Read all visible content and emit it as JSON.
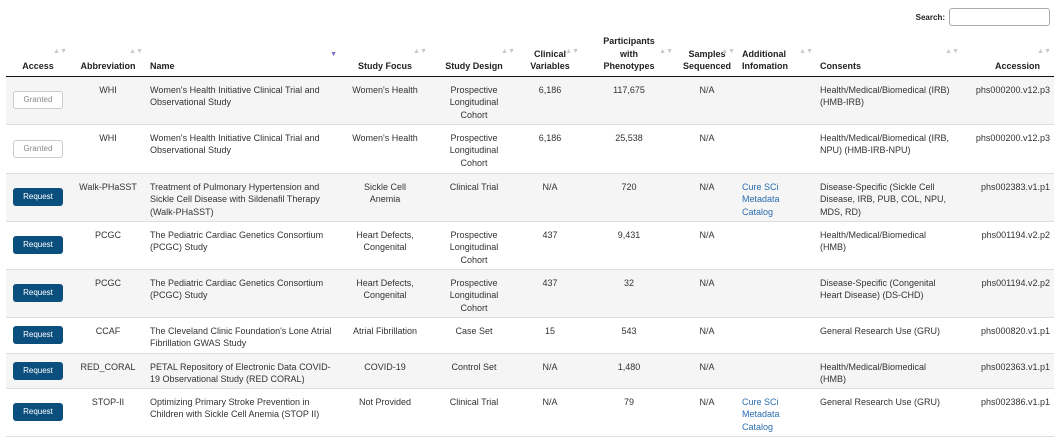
{
  "search": {
    "label": "Search:",
    "value": "",
    "placeholder": ""
  },
  "headers": {
    "access": "Access",
    "abbreviation": "Abbreviation",
    "name": "Name",
    "study_focus": "Study Focus",
    "study_design": "Study Design",
    "clinical_variables_l1": "Clinical",
    "clinical_variables_l2": "Variables",
    "participants_l1": "Participants",
    "participants_l2": "with",
    "participants_l3": "Phenotypes",
    "samples_l1": "Samples",
    "samples_l2": "Sequenced",
    "additional_l1": "Additional",
    "additional_l2": "Infomation",
    "consents": "Consents",
    "accession": "Accession"
  },
  "sort_icons": {
    "inactive": "▲▼",
    "active": "▼"
  },
  "rows": [
    {
      "access": "Granted",
      "access_type": "granted",
      "abbreviation": "WHI",
      "name_lines": [
        "Women's Health Initiative Clinical Trial and",
        "Observational Study"
      ],
      "focus_lines": [
        "Women's Health"
      ],
      "design_lines": [
        "Prospective",
        "Longitudinal",
        "Cohort"
      ],
      "clinical_variables": "6,186",
      "participants": "117,675",
      "samples": "N/A",
      "info_lines": [],
      "consents_lines": [
        "Health/Medical/Biomedical (IRB)",
        "(HMB-IRB)"
      ],
      "accession": "phs000200.v12.p3"
    },
    {
      "access": "Granted",
      "access_type": "granted",
      "abbreviation": "WHI",
      "name_lines": [
        "Women's Health Initiative Clinical Trial and",
        "Observational Study"
      ],
      "focus_lines": [
        "Women's Health"
      ],
      "design_lines": [
        "Prospective",
        "Longitudinal",
        "Cohort"
      ],
      "clinical_variables": "6,186",
      "participants": "25,538",
      "samples": "N/A",
      "info_lines": [],
      "consents_lines": [
        "Health/Medical/Biomedical (IRB,",
        "NPU) (HMB-IRB-NPU)"
      ],
      "accession": "phs000200.v12.p3"
    },
    {
      "access": "Request",
      "access_type": "request",
      "abbreviation": "Walk-PHaSST",
      "name_lines": [
        "Treatment of Pulmonary Hypertension and",
        "Sickle Cell Disease with Sildenafil Therapy",
        "(Walk-PHaSST)"
      ],
      "focus_lines": [
        "Sickle Cell",
        "Anemia"
      ],
      "design_lines": [
        "Clinical Trial"
      ],
      "clinical_variables": "N/A",
      "participants": "720",
      "samples": "N/A",
      "info_lines": [
        "Cure SCi",
        "Metadata",
        "Catalog"
      ],
      "consents_lines": [
        "Disease-Specific (Sickle Cell",
        "Disease, IRB, PUB, COL, NPU,",
        "MDS, RD)"
      ],
      "accession": "phs002383.v1.p1"
    },
    {
      "access": "Request",
      "access_type": "request",
      "abbreviation": "PCGC",
      "name_lines": [
        "The Pediatric Cardiac Genetics Consortium",
        "(PCGC) Study"
      ],
      "focus_lines": [
        "Heart Defects,",
        "Congenital"
      ],
      "design_lines": [
        "Prospective",
        "Longitudinal",
        "Cohort"
      ],
      "clinical_variables": "437",
      "participants": "9,431",
      "samples": "N/A",
      "info_lines": [],
      "consents_lines": [
        "Health/Medical/Biomedical",
        "(HMB)"
      ],
      "accession": "phs001194.v2.p2"
    },
    {
      "access": "Request",
      "access_type": "request",
      "abbreviation": "PCGC",
      "name_lines": [
        "The Pediatric Cardiac Genetics Consortium",
        "(PCGC) Study"
      ],
      "focus_lines": [
        "Heart Defects,",
        "Congenital"
      ],
      "design_lines": [
        "Prospective",
        "Longitudinal",
        "Cohort"
      ],
      "clinical_variables": "437",
      "participants": "32",
      "samples": "N/A",
      "info_lines": [],
      "consents_lines": [
        "Disease-Specific (Congenital",
        "Heart Disease) (DS-CHD)"
      ],
      "accession": "phs001194.v2.p2"
    },
    {
      "access": "Request",
      "access_type": "request",
      "abbreviation": "CCAF",
      "name_lines": [
        "The Cleveland Clinic Foundation's Lone Atrial",
        "Fibrillation GWAS Study"
      ],
      "focus_lines": [
        "Atrial Fibrillation"
      ],
      "design_lines": [
        "Case Set"
      ],
      "clinical_variables": "15",
      "participants": "543",
      "samples": "N/A",
      "info_lines": [],
      "consents_lines": [
        "General Research Use (GRU)"
      ],
      "accession": "phs000820.v1.p1"
    },
    {
      "access": "Request",
      "access_type": "request",
      "abbreviation": "RED_CORAL",
      "name_lines": [
        "PETAL Repository of Electronic Data COVID-",
        "19 Observational Study (RED CORAL)"
      ],
      "focus_lines": [
        "COVID-19"
      ],
      "design_lines": [
        "Control Set"
      ],
      "clinical_variables": "N/A",
      "participants": "1,480",
      "samples": "N/A",
      "info_lines": [],
      "consents_lines": [
        "Health/Medical/Biomedical",
        "(HMB)"
      ],
      "accession": "phs002363.v1.p1"
    },
    {
      "access": "Request",
      "access_type": "request",
      "abbreviation": "STOP-II",
      "name_lines": [
        "Optimizing Primary Stroke Prevention in",
        "Children with Sickle Cell Anemia (STOP II)"
      ],
      "focus_lines": [
        "Not Provided"
      ],
      "design_lines": [
        "Clinical Trial"
      ],
      "clinical_variables": "N/A",
      "participants": "79",
      "samples": "N/A",
      "info_lines": [
        "Cure SCi",
        "Metadata",
        "Catalog"
      ],
      "consents_lines": [
        "General Research Use (GRU)"
      ],
      "accession": "phs002386.v1.p1"
    }
  ]
}
